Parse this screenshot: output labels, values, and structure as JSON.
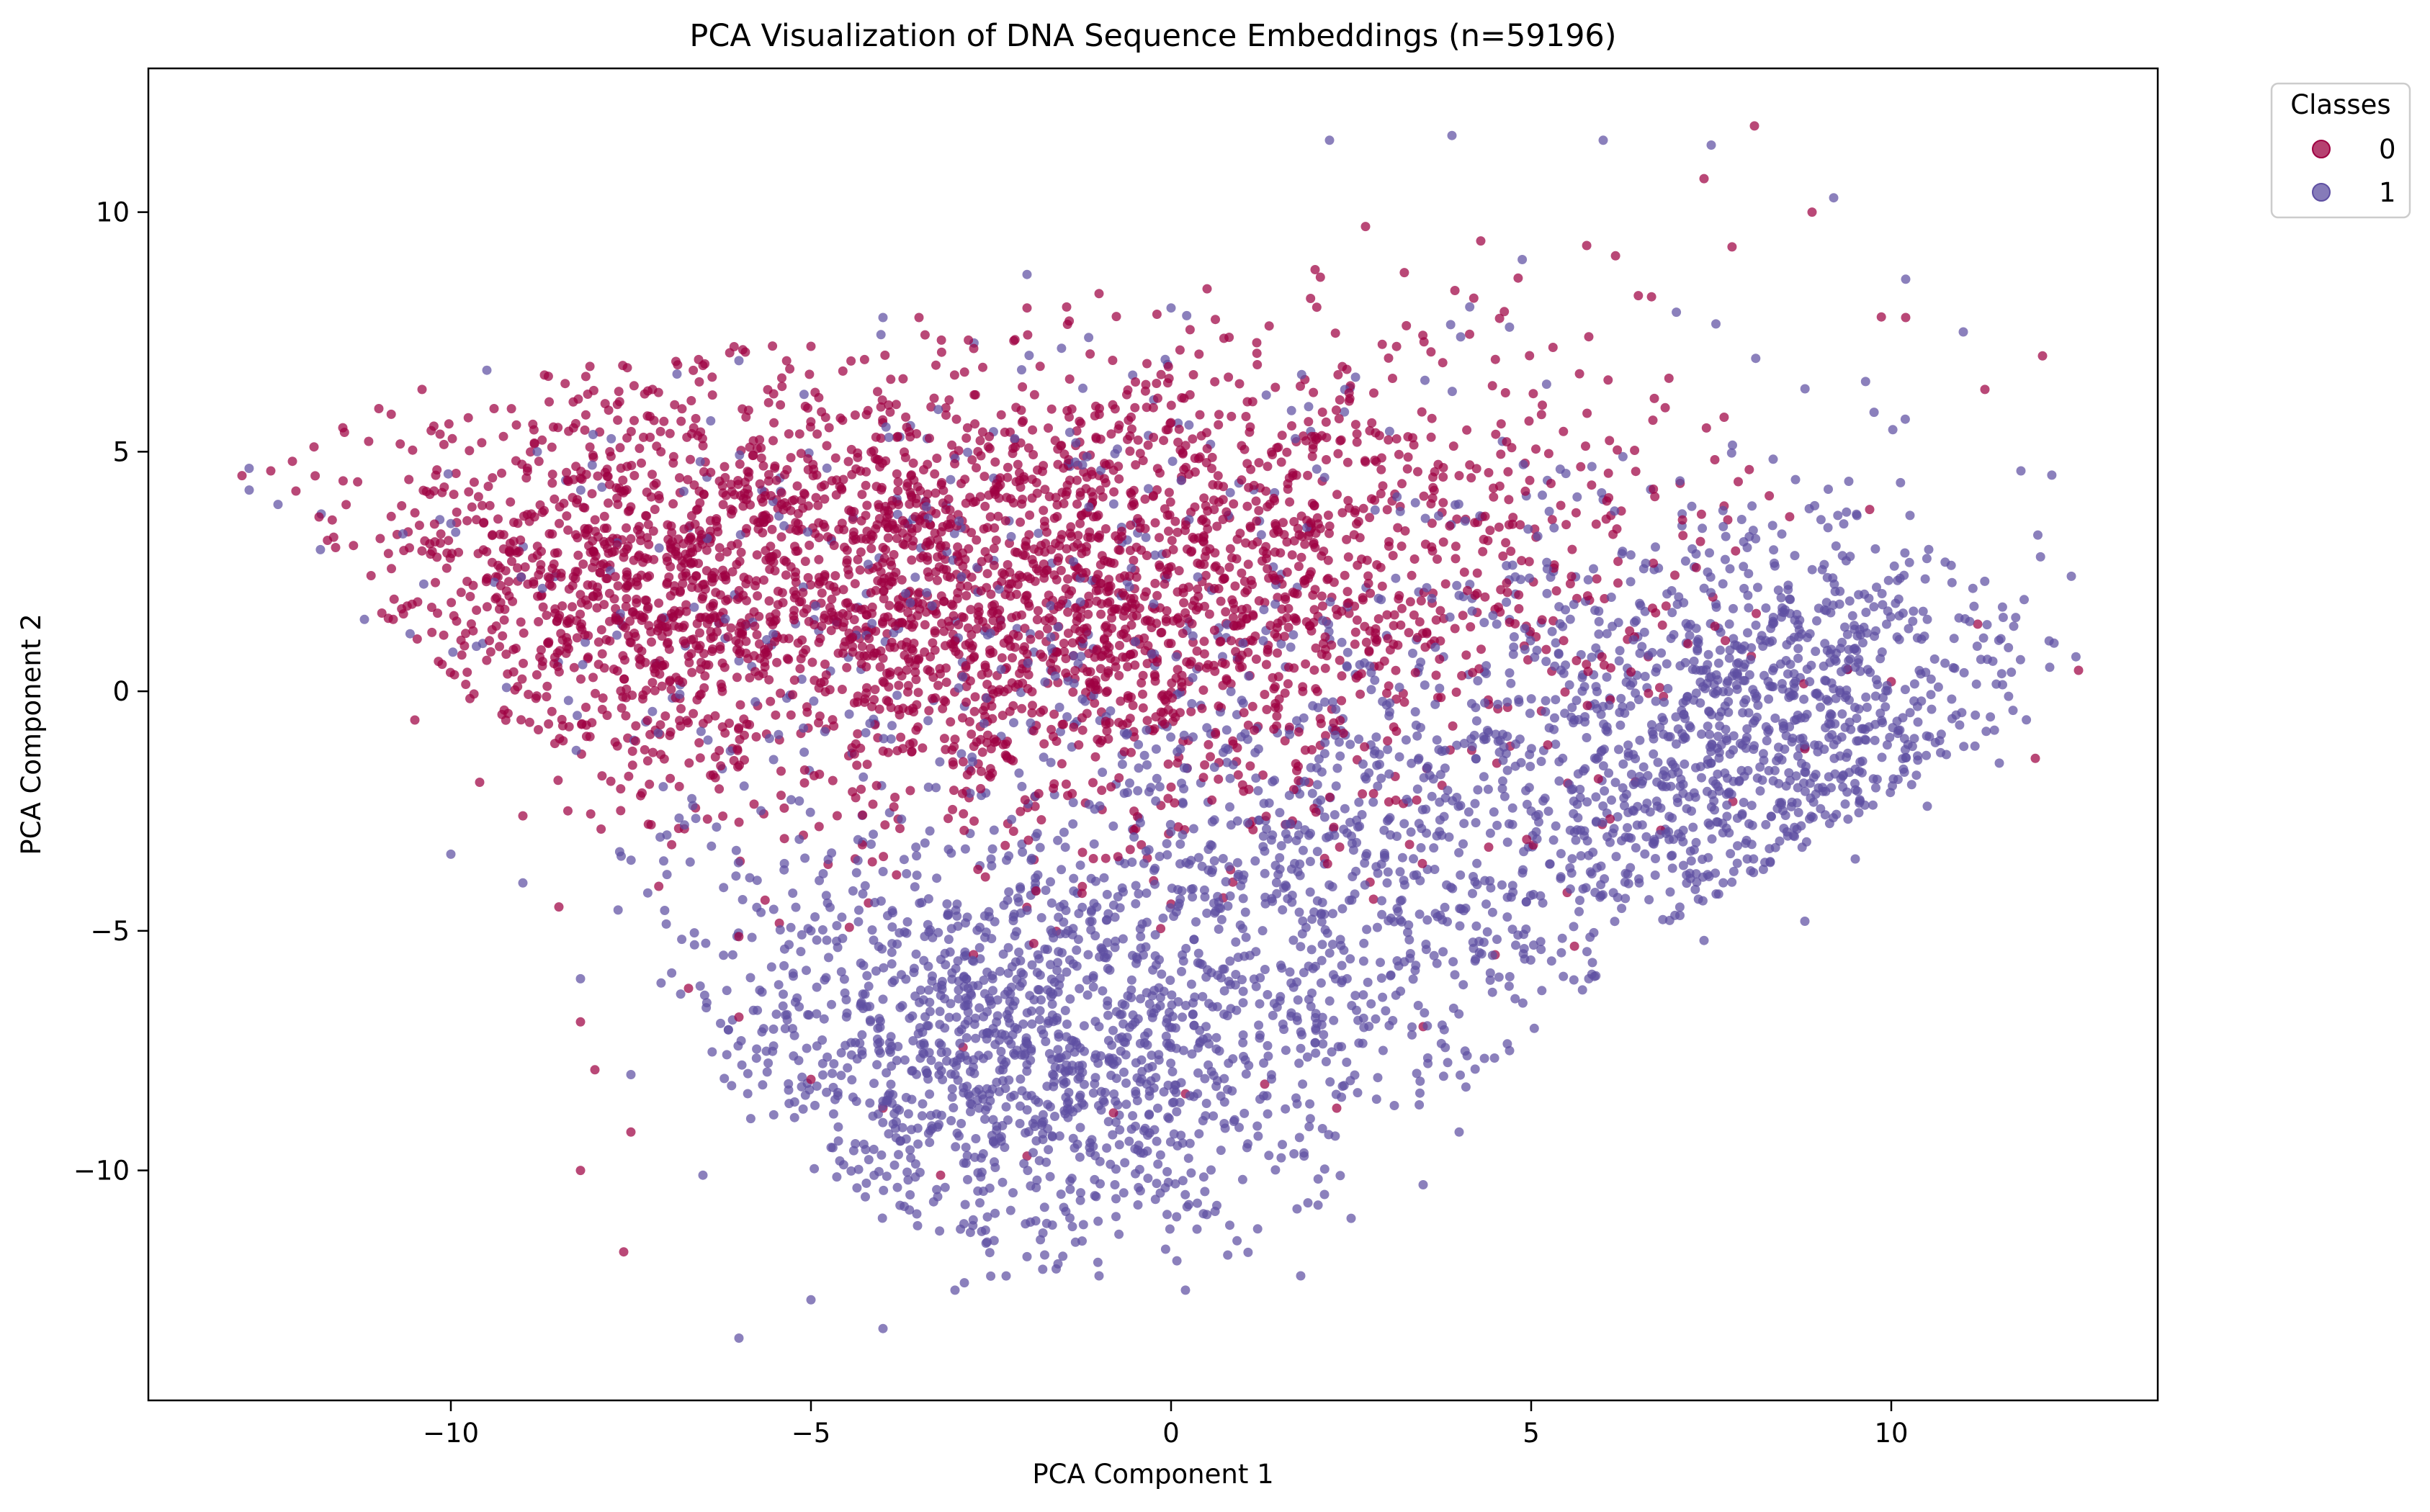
{
  "chart_data": {
    "type": "scatter",
    "title": "PCA Visualization of DNA Sequence Embeddings (n=59196)",
    "xlabel": "PCA Component 1",
    "ylabel": "PCA Component 2",
    "xlim": [
      -14.2,
      13.7
    ],
    "ylim": [
      -14.8,
      13.0
    ],
    "xticks": [
      -10,
      -5,
      0,
      5,
      10
    ],
    "yticks": [
      -10,
      -5,
      0,
      5,
      10
    ],
    "grid": false,
    "legend": {
      "title": "Classes",
      "placement": "outside-top-right",
      "entries": [
        "0",
        "1"
      ]
    },
    "series": [
      {
        "name": "0",
        "color": "#9e0142",
        "description_points": [
          [
            -12.9,
            4.5
          ],
          [
            -12.5,
            4.6
          ],
          [
            -12.2,
            4.8
          ],
          [
            -11.9,
            5.1
          ],
          [
            -11.5,
            5.5
          ],
          [
            -11.0,
            5.9
          ],
          [
            -10.4,
            6.3
          ],
          [
            -9.4,
            5.9
          ],
          [
            -8.7,
            6.6
          ],
          [
            -8.1,
            6.2
          ],
          [
            -7.2,
            6.3
          ],
          [
            -6.5,
            6.8
          ],
          [
            -5.0,
            7.2
          ],
          [
            -3.5,
            7.8
          ],
          [
            -2.0,
            8.0
          ],
          [
            -1.0,
            8.3
          ],
          [
            0.5,
            8.4
          ],
          [
            2.0,
            8.8
          ],
          [
            2.7,
            9.7
          ],
          [
            4.3,
            9.4
          ],
          [
            5.8,
            7.4
          ],
          [
            7.4,
            10.7
          ],
          [
            8.1,
            11.8
          ],
          [
            8.9,
            10.0
          ],
          [
            10.2,
            7.8
          ],
          [
            11.3,
            6.3
          ],
          [
            12.1,
            7.0
          ],
          [
            -11.6,
            3.0
          ],
          [
            -10.8,
            1.5
          ],
          [
            -10.5,
            -0.6
          ],
          [
            -9.6,
            -1.9
          ],
          [
            -9.0,
            -2.6
          ],
          [
            -8.5,
            -4.5
          ],
          [
            -8.2,
            -6.9
          ],
          [
            -8.0,
            -7.9
          ],
          [
            -7.5,
            -9.2
          ],
          [
            -8.2,
            -10.0
          ],
          [
            -7.6,
            -11.7
          ],
          [
            -6.7,
            -6.2
          ],
          [
            -6.0,
            -6.8
          ],
          [
            -5.0,
            -8.1
          ],
          [
            -4.0,
            -8.7
          ],
          [
            -3.2,
            -10.1
          ],
          [
            -2.0,
            -9.7
          ],
          [
            -0.8,
            -8.8
          ],
          [
            0.2,
            -8.4
          ],
          [
            1.3,
            -8.2
          ],
          [
            2.3,
            -8.7
          ],
          [
            3.5,
            -7.0
          ],
          [
            4.5,
            -5.5
          ],
          [
            5.5,
            -4.2
          ],
          [
            6.8,
            -2.9
          ],
          [
            7.8,
            -2.3
          ],
          [
            8.8,
            -1.2
          ],
          [
            10.0,
            0.2
          ],
          [
            11.2,
            1.4
          ],
          [
            12.0,
            -1.4
          ],
          [
            -4.0,
            3.0
          ],
          [
            -2.0,
            2.0
          ],
          [
            0.0,
            1.0
          ],
          [
            2.0,
            3.0
          ],
          [
            4.0,
            4.5
          ],
          [
            -6.0,
            1.0
          ],
          [
            -3.0,
            -1.0
          ],
          [
            0.0,
            -2.0
          ],
          [
            -1.0,
            4.5
          ]
        ]
      },
      {
        "name": "1",
        "color": "#5e4fa2",
        "description_points": [
          [
            -12.8,
            4.2
          ],
          [
            -12.4,
            3.9
          ],
          [
            -11.8,
            3.7
          ],
          [
            -11.2,
            1.5
          ],
          [
            -10.0,
            3.5
          ],
          [
            -9.5,
            6.7
          ],
          [
            -8.8,
            5.0
          ],
          [
            -10.0,
            -3.4
          ],
          [
            -9.0,
            -4.0
          ],
          [
            -8.2,
            -6.0
          ],
          [
            -7.5,
            -8.0
          ],
          [
            -6.5,
            -10.1
          ],
          [
            -6.0,
            -13.5
          ],
          [
            -5.0,
            -12.7
          ],
          [
            -4.0,
            -13.3
          ],
          [
            -3.0,
            -12.5
          ],
          [
            -2.0,
            -11.8
          ],
          [
            -1.0,
            -12.2
          ],
          [
            0.2,
            -12.5
          ],
          [
            1.8,
            -12.2
          ],
          [
            2.5,
            -11.0
          ],
          [
            3.5,
            -10.3
          ],
          [
            4.0,
            -9.2
          ],
          [
            4.7,
            -7.5
          ],
          [
            5.8,
            -6.0
          ],
          [
            6.5,
            -4.0
          ],
          [
            7.4,
            -5.2
          ],
          [
            8.0,
            -3.5
          ],
          [
            8.8,
            -4.8
          ],
          [
            9.5,
            -3.5
          ],
          [
            10.5,
            -2.4
          ],
          [
            11.5,
            -1.5
          ],
          [
            12.2,
            0.5
          ],
          [
            12.5,
            2.4
          ],
          [
            11.8,
            4.6
          ],
          [
            11.0,
            7.5
          ],
          [
            10.2,
            8.6
          ],
          [
            9.2,
            10.3
          ],
          [
            7.5,
            11.4
          ],
          [
            6.0,
            11.5
          ],
          [
            3.9,
            11.6
          ],
          [
            2.2,
            11.5
          ],
          [
            0.0,
            8.0
          ],
          [
            -2.0,
            8.7
          ],
          [
            -4.0,
            7.8
          ],
          [
            -6.0,
            6.9
          ],
          [
            -3.0,
            -8.0
          ],
          [
            -1.0,
            -7.0
          ],
          [
            1.0,
            -6.5
          ],
          [
            3.0,
            -4.0
          ],
          [
            5.0,
            -2.5
          ],
          [
            7.5,
            -1.5
          ],
          [
            9.5,
            0.5
          ],
          [
            10.5,
            1.5
          ],
          [
            8.0,
            3.0
          ],
          [
            6.0,
            4.0
          ],
          [
            4.0,
            2.0
          ],
          [
            -5.0,
            -5.0
          ],
          [
            -7.0,
            -3.0
          ],
          [
            -2.5,
            -3.5
          ]
        ]
      }
    ],
    "point_count": 59196
  }
}
